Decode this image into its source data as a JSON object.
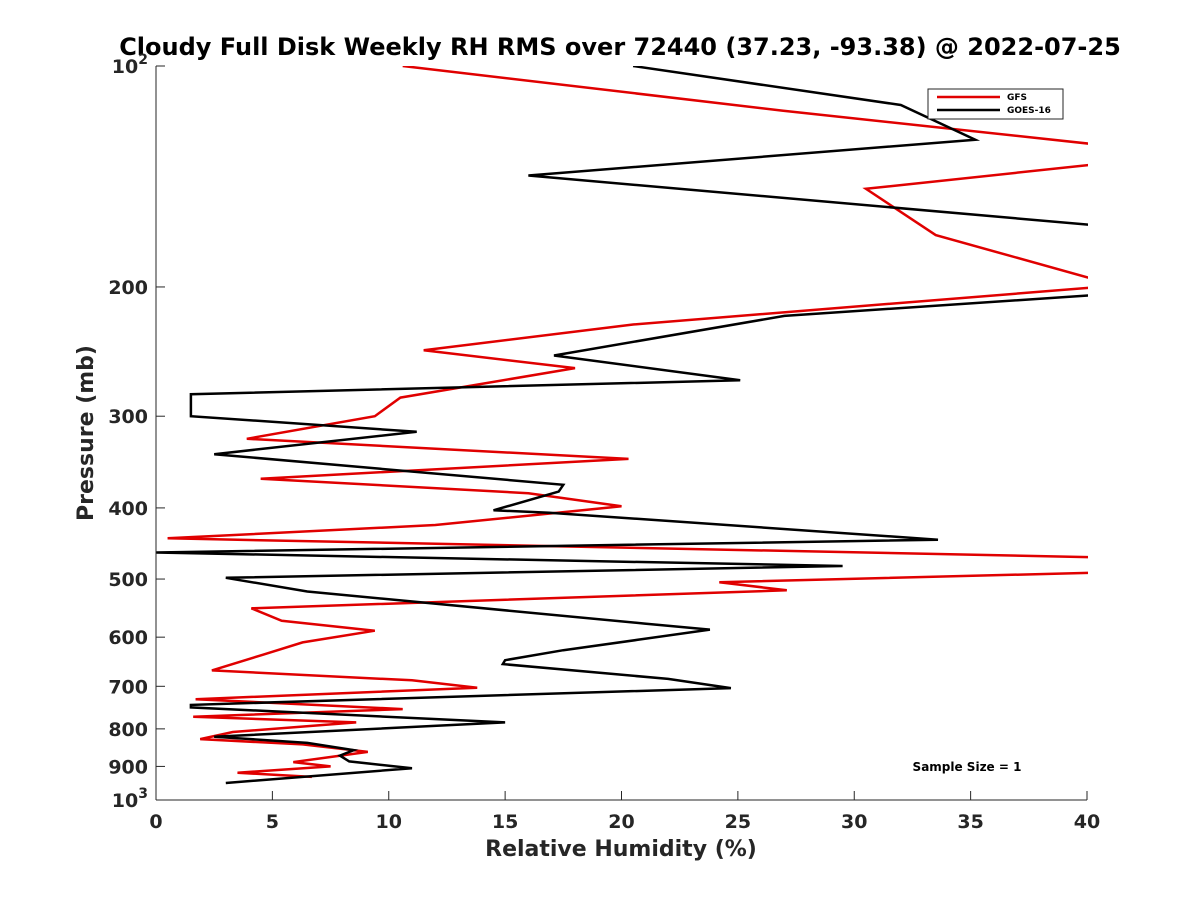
{
  "chart_data": {
    "type": "line",
    "title": "Cloudy Full Disk Weekly RH RMS over 72440 (37.23, -93.38) @ 2022-07-25",
    "xlabel": "Relative Humidity (%)",
    "ylabel": "Pressure (mb)",
    "xlim": [
      0,
      40
    ],
    "ylim": [
      100,
      1000
    ],
    "yscale": "log",
    "y_reversed": true,
    "x_ticks": [
      "0",
      "5",
      "10",
      "15",
      "20",
      "25",
      "30",
      "35",
      "40"
    ],
    "y_ticks": [
      {
        "value": 100,
        "base": "10",
        "exp": "2"
      },
      {
        "value": 200,
        "label": "200"
      },
      {
        "value": 300,
        "label": "300"
      },
      {
        "value": 400,
        "label": "400"
      },
      {
        "value": 500,
        "label": "500"
      },
      {
        "value": 600,
        "label": "600"
      },
      {
        "value": 700,
        "label": "700"
      },
      {
        "value": 800,
        "label": "800"
      },
      {
        "value": 900,
        "label": "900"
      },
      {
        "value": 1000,
        "base": "10",
        "exp": "3"
      }
    ],
    "grid": false,
    "legend_position": "top-right",
    "annotation": "Sample Size = 1",
    "series": [
      {
        "name": "GFS",
        "color": "#e00000",
        "points": [
          [
            10.6,
            100
          ],
          [
            26.9,
            115
          ],
          [
            40.5,
            128
          ],
          [
            40.5,
            136
          ],
          [
            30.5,
            147
          ],
          [
            33.5,
            170
          ],
          [
            40.5,
            196
          ],
          [
            40.5,
            200
          ],
          [
            20.5,
            225
          ],
          [
            11.5,
            244
          ],
          [
            18.0,
            258
          ],
          [
            10.5,
            283
          ],
          [
            9.4,
            300
          ],
          [
            3.9,
            322
          ],
          [
            20.3,
            343
          ],
          [
            4.5,
            365
          ],
          [
            16.0,
            382
          ],
          [
            20.0,
            398
          ],
          [
            12.0,
            422
          ],
          [
            0.5,
            440
          ],
          [
            40.5,
            467
          ],
          [
            40.5,
            490
          ],
          [
            24.2,
            505
          ],
          [
            27.1,
            518
          ],
          [
            4.1,
            548
          ],
          [
            5.4,
            570
          ],
          [
            9.4,
            588
          ],
          [
            6.3,
            610
          ],
          [
            4.6,
            634
          ],
          [
            2.4,
            666
          ],
          [
            11.0,
            687
          ],
          [
            13.8,
            703
          ],
          [
            1.7,
            729
          ],
          [
            10.6,
            752
          ],
          [
            1.6,
            770
          ],
          [
            8.6,
            784
          ],
          [
            3.3,
            808
          ],
          [
            1.9,
            826
          ],
          [
            6.3,
            840
          ],
          [
            9.1,
            860
          ],
          [
            5.9,
            888
          ],
          [
            7.5,
            900
          ],
          [
            3.5,
            918
          ],
          [
            6.7,
            930
          ]
        ]
      },
      {
        "name": "GOES-16",
        "color": "#000000",
        "points": [
          [
            20.5,
            100
          ],
          [
            32.0,
            113
          ],
          [
            35.2,
            126
          ],
          [
            16.0,
            141
          ],
          [
            40.5,
            165
          ],
          [
            40.5,
            205
          ],
          [
            27.0,
            219
          ],
          [
            17.1,
            248
          ],
          [
            25.1,
            268
          ],
          [
            1.5,
            280
          ],
          [
            1.5,
            300
          ],
          [
            11.2,
            315
          ],
          [
            2.5,
            338
          ],
          [
            17.5,
            372
          ],
          [
            17.3,
            380
          ],
          [
            14.5,
            403
          ],
          [
            16.9,
            406
          ],
          [
            33.6,
            442
          ],
          [
            0.0,
            460
          ],
          [
            29.5,
            480
          ],
          [
            3.0,
            498
          ],
          [
            6.5,
            520
          ],
          [
            21.0,
            575
          ],
          [
            23.8,
            586
          ],
          [
            20.7,
            605
          ],
          [
            17.5,
            625
          ],
          [
            15.0,
            645
          ],
          [
            14.9,
            653
          ],
          [
            22.0,
            684
          ],
          [
            24.7,
            704
          ],
          [
            1.5,
            742
          ],
          [
            1.5,
            748
          ],
          [
            15.0,
            784
          ],
          [
            2.5,
            820
          ],
          [
            6.5,
            836
          ],
          [
            8.5,
            855
          ],
          [
            7.9,
            870
          ],
          [
            8.3,
            886
          ],
          [
            11.0,
            905
          ],
          [
            3.0,
            948
          ]
        ]
      }
    ]
  }
}
